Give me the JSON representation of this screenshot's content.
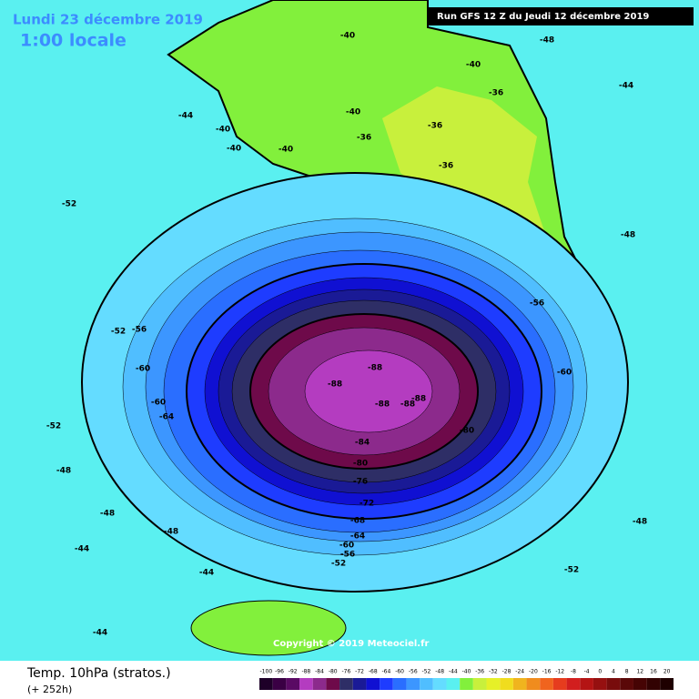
{
  "header": {
    "date": "Lundi 23 décembre 2019",
    "time": "1:00 locale",
    "run": "Run GFS 12 Z du Jeudi 12 décembre 2019"
  },
  "copyright": "Copyright © 2019 Meteociel.fr",
  "footer": {
    "title": "Temp. 10hPa (stratos.)",
    "lead": "(+ 252h)"
  },
  "color_scale": {
    "levels": [
      -100,
      -96,
      -92,
      -88,
      -84,
      -80,
      -76,
      -72,
      -68,
      -64,
      -60,
      -56,
      -52,
      -48,
      -44,
      -40,
      -36,
      -32,
      -28,
      -24,
      -20,
      -16,
      -12,
      -8,
      -4,
      0,
      4,
      8,
      12,
      16,
      20
    ],
    "colors": [
      "#1e0028",
      "#3a0044",
      "#5a0a64",
      "#b43cc0",
      "#8c2a8c",
      "#6e0a4a",
      "#2e2e66",
      "#1a1a96",
      "#1010d2",
      "#1e3cff",
      "#2a6eff",
      "#3c96ff",
      "#50beff",
      "#64dcff",
      "#5af0f0",
      "#82f03c",
      "#c8f03c",
      "#e6f028",
      "#f0dc1e",
      "#f0b41e",
      "#f08c1e",
      "#f0641e",
      "#e63c1e",
      "#d21e1e",
      "#b41414",
      "#961010",
      "#780c0c",
      "#5a0808",
      "#460404",
      "#320202",
      "#1e0000"
    ]
  },
  "contour_labels": [
    -88,
    -88,
    -88,
    -88,
    -88,
    -84,
    -80,
    -80,
    -76,
    -72,
    -68,
    -64,
    -60,
    -56,
    -52,
    -60,
    -64,
    -60,
    -56,
    -52,
    -52,
    -48,
    -48,
    -48,
    -44,
    -44,
    -44,
    -40,
    -40,
    -40,
    -40,
    -36,
    -36,
    -36,
    -36,
    -40,
    -44,
    -48,
    -48,
    -52,
    -56,
    -60,
    -44,
    -40,
    -48,
    -52
  ]
}
